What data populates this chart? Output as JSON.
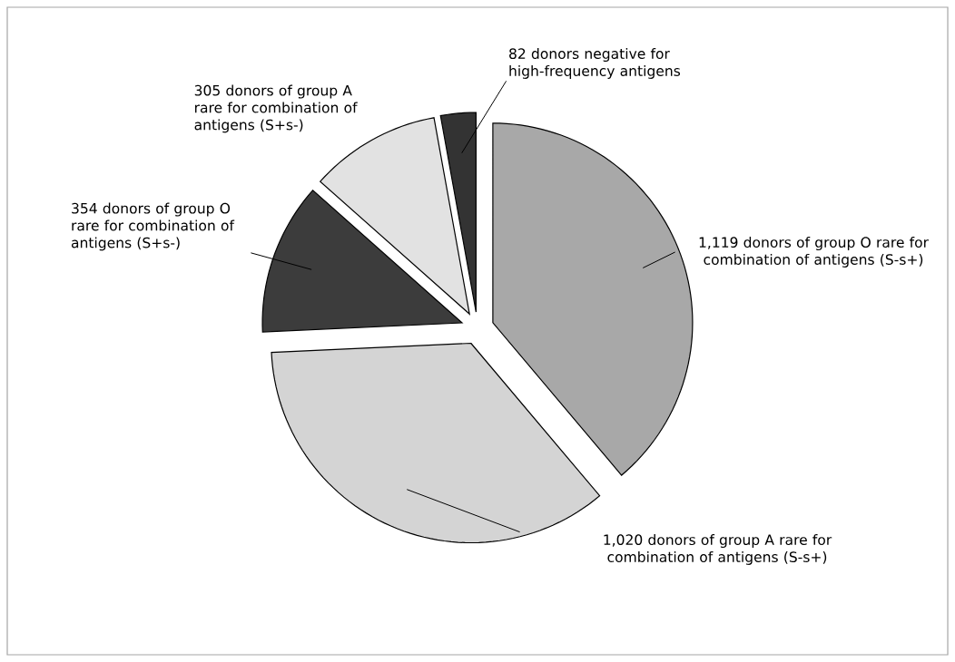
{
  "chart_data": {
    "type": "pie",
    "categories": [
      "1,119 donors of group O rare for combination of antigens (S-s+)",
      "1,020 donors of group A rare for combination of antigens (S-s+)",
      "354 donors of group O rare for combination of antigens (S+s-)",
      "305 donors of group A rare for combination of antigens (S+s-)",
      "82 donors negative for high-frequency antigens"
    ],
    "values": [
      1119,
      1020,
      354,
      305,
      82
    ],
    "colors": [
      "#a8a8a8",
      "#d4d4d4",
      "#3c3c3c",
      "#e2e2e2",
      "#333333"
    ]
  }
}
